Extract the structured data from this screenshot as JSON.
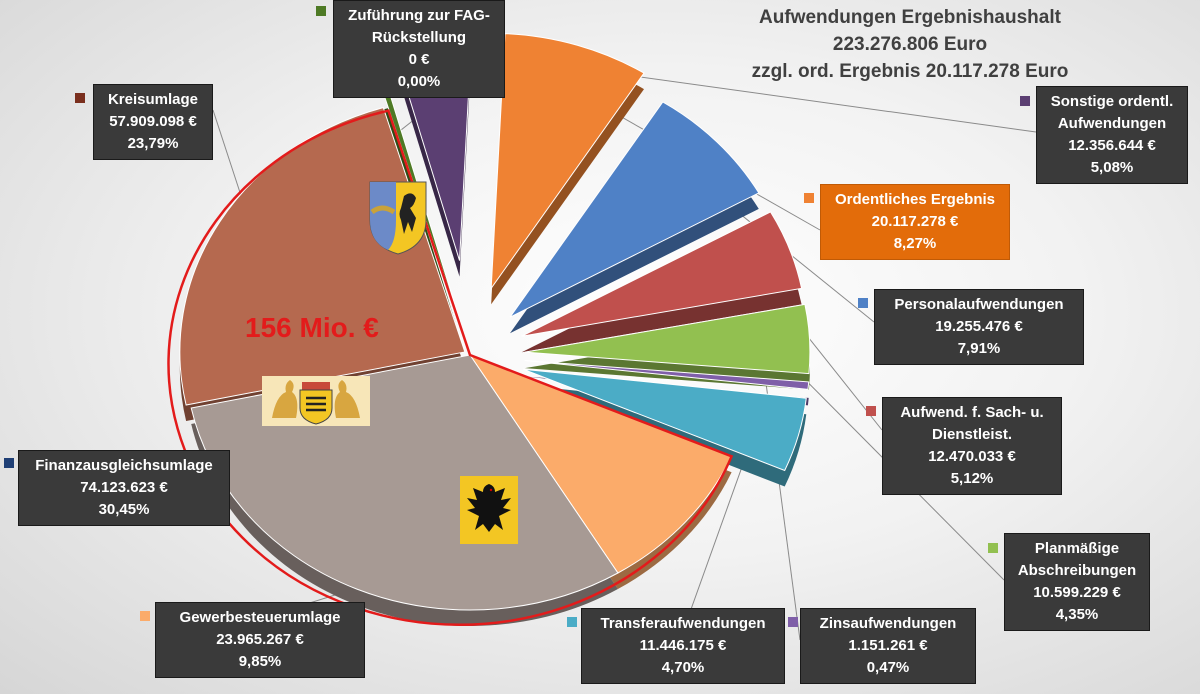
{
  "title_lines": [
    "Aufwendungen Ergebnishaushalt",
    "223.276.806 Euro",
    "zzgl. ord. Ergebnis 20.117.278 Euro"
  ],
  "highlight_label": "156 Mio. €",
  "chart_data": {
    "type": "pie",
    "title": "Aufwendungen Ergebnishaushalt 223.276.806 Euro zzgl. ord. Ergebnis 20.117.278 Euro",
    "slices": [
      {
        "label": "Kreisumlage",
        "value": 57909098,
        "value_text": "57.909.098 €",
        "percent_text": "23,79%",
        "color": "#b5694f"
      },
      {
        "label": "Zuführung zur FAG-Rückstellung",
        "value": 0,
        "value_text": "0 €",
        "percent_text": "0,00%",
        "color": "#4e7a25"
      },
      {
        "label": "Sonstige ordentl. Aufwendungen",
        "value": 12356644,
        "value_text": "12.356.644 €",
        "percent_text": "5,08%",
        "color": "#5b3f72"
      },
      {
        "label": "Ordentliches Ergebnis",
        "value": 20117278,
        "value_text": "20.117.278 €",
        "percent_text": "8,27%",
        "color": "#ef8233"
      },
      {
        "label": "Personalaufwendungen",
        "value": 19255476,
        "value_text": "19.255.476 €",
        "percent_text": "7,91%",
        "color": "#4f81c6"
      },
      {
        "label": "Aufwend. f. Sach- u. Dienstleist.",
        "value": 12470033,
        "value_text": "12.470.033 €",
        "percent_text": "5,12%",
        "color": "#c0504d"
      },
      {
        "label": "Planmäßige Abschreibungen",
        "value": 10599229,
        "value_text": "10.599.229 €",
        "percent_text": "4,35%",
        "color": "#92c050"
      },
      {
        "label": "Zinsaufwendungen",
        "value": 1151261,
        "value_text": "1.151.261 €",
        "percent_text": "0,47%",
        "color": "#7f5fa8"
      },
      {
        "label": "Transferaufwendungen",
        "value": 11446175,
        "value_text": "11.446.175 €",
        "percent_text": "4,70%",
        "color": "#4bacc6"
      },
      {
        "label": "Gewerbesteuerumlage",
        "value": 23965267,
        "value_text": "23.965.267 €",
        "percent_text": "9,85%",
        "color": "#fbab6a"
      },
      {
        "label": "Finanzausgleichsumlage",
        "value": 74123623,
        "value_text": "74.123.623 €",
        "percent_text": "30,45%",
        "color": "#a79a94"
      }
    ]
  }
}
